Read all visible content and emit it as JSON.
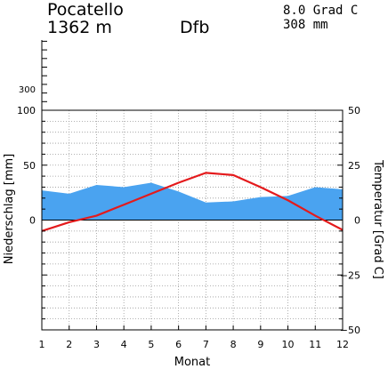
{
  "header": {
    "station": "Pocatello",
    "elevation": "1362  m",
    "climate_class": "Dfb",
    "annual_temperature": "8.0 Grad C",
    "annual_precipitation": "308 mm"
  },
  "chart_data": {
    "type": "line",
    "x": [
      1,
      2,
      3,
      4,
      5,
      6,
      7,
      8,
      9,
      10,
      11,
      12
    ],
    "xlabel": "Monat",
    "ylabel_left": "Niederschlag [mm]",
    "ylabel_right": "Temperatur [Grad C]",
    "left_ticks": [
      "100",
      "50",
      "0"
    ],
    "left_upper_tick": "300",
    "right_ticks": [
      "50",
      "25",
      "0",
      "−25",
      "−50"
    ],
    "x_ticks": [
      "1",
      "2",
      "3",
      "4",
      "5",
      "6",
      "7",
      "8",
      "9",
      "10",
      "11",
      "12"
    ],
    "precip_ylim": [
      0,
      100
    ],
    "temp_ylim": [
      -50,
      50
    ],
    "grid": true,
    "series": [
      {
        "key": "precipitation",
        "kind": "area",
        "color": "#4aa3f0",
        "values": [
          27,
          24,
          32,
          30,
          34,
          26,
          16,
          17,
          21,
          22,
          30,
          28
        ]
      },
      {
        "key": "temperature",
        "kind": "line",
        "color": "#e41a1c",
        "values": [
          -5,
          -1,
          2,
          7,
          12,
          17,
          21.5,
          20.5,
          15,
          9,
          2,
          -4.5
        ]
      }
    ]
  }
}
